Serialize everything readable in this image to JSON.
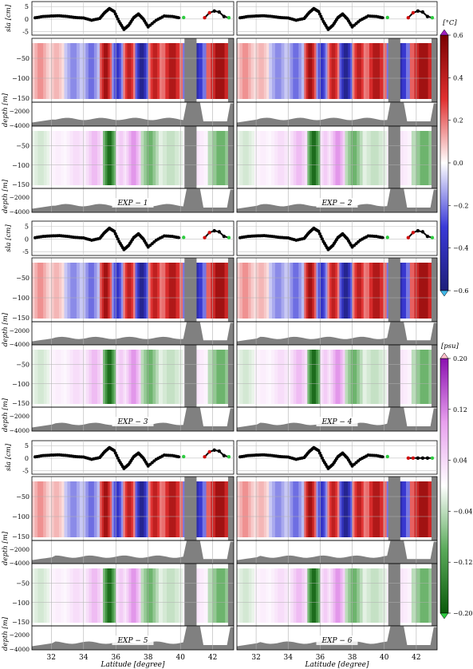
{
  "chart_data": {
    "type": "heatmap",
    "description_panels": "Six experiments, each with a sea-level-anomaly line panel, a temperature anomaly depth section and a salinity anomaly depth section along latitude",
    "x_axis": {
      "label": "Latitude [degree]",
      "ticks": [
        32,
        34,
        36,
        38,
        40,
        42
      ],
      "range": [
        30.8,
        43.3
      ]
    },
    "sla_axis": {
      "label": "sla [cm]",
      "ticks": [
        5,
        0,
        -5
      ],
      "range": [
        -6.5,
        7
      ]
    },
    "depth_axis": {
      "label": "depth [m]",
      "upper_ticks": [
        -50,
        -100,
        -150
      ],
      "lower_ticks": [
        -2000,
        -4000
      ],
      "upper_range": [
        0,
        -160
      ],
      "lower_range": [
        -160,
        -4000
      ]
    },
    "temperature_colorbar": {
      "unit": "[°C]",
      "ticks": [
        0.6,
        0.4,
        0.2,
        0.0,
        -0.2,
        -0.4,
        -0.6
      ],
      "range": [
        -0.6,
        0.6
      ],
      "colors": [
        "#2020a0",
        "#ffffff",
        "#d00000"
      ]
    },
    "salinity_colorbar": {
      "unit": "[psu]",
      "ticks": [
        0.2,
        0.12,
        0.04,
        -0.04,
        -0.12,
        -0.2
      ],
      "range": [
        -0.2,
        0.2
      ],
      "colors": [
        "#1a7a1a",
        "#ffffff",
        "#9a1aca"
      ]
    },
    "experiments": [
      {
        "name": "EXP-1",
        "label": "EXP − 1"
      },
      {
        "name": "EXP-2",
        "label": "EXP − 2"
      },
      {
        "name": "EXP-3",
        "label": "EXP − 3"
      },
      {
        "name": "EXP-4",
        "label": "EXP − 4"
      },
      {
        "name": "EXP-5",
        "label": "EXP − 5"
      },
      {
        "name": "EXP-6",
        "label": "EXP − 6"
      }
    ],
    "sla_series": {
      "lat": [
        31.0,
        31.5,
        32.0,
        32.5,
        33.0,
        33.5,
        34.0,
        34.5,
        35.0,
        35.3,
        35.6,
        35.9,
        36.2,
        36.5,
        36.8,
        37.1,
        37.4,
        37.7,
        38.0,
        38.5,
        39.0,
        39.5,
        40.0
      ],
      "values": [
        0.5,
        1.0,
        1.2,
        1.3,
        1.0,
        0.6,
        0.4,
        -0.5,
        0.2,
        2.5,
        4.2,
        3.0,
        -1.0,
        -4.2,
        -2.5,
        0.5,
        2.0,
        0.0,
        -3.2,
        -0.5,
        1.2,
        1.0,
        0.4
      ],
      "north_lat": [
        41.5,
        41.8,
        42.1,
        42.4,
        42.7,
        43.0
      ],
      "north_values": [
        0.5,
        2.5,
        3.2,
        2.8,
        1.0,
        0.5
      ]
    },
    "temperature_bands": [
      {
        "lat": 31.4,
        "value": 0.18
      },
      {
        "lat": 32.3,
        "value": 0.12
      },
      {
        "lat": 33.3,
        "value": -0.2
      },
      {
        "lat": 34.6,
        "value": -0.25
      },
      {
        "lat": 35.4,
        "value": 0.55
      },
      {
        "lat": 36.1,
        "value": -0.4
      },
      {
        "lat": 36.8,
        "value": 0.45
      },
      {
        "lat": 37.6,
        "value": -0.6
      },
      {
        "lat": 38.4,
        "value": 0.45
      },
      {
        "lat": 39.3,
        "value": 0.5
      },
      {
        "lat": 41.0,
        "value": -0.5
      },
      {
        "lat": 42.2,
        "value": 0.55
      }
    ],
    "salinity_bands": [
      {
        "lat": 31.4,
        "value": -0.03
      },
      {
        "lat": 32.4,
        "value": 0.02
      },
      {
        "lat": 33.5,
        "value": 0.04
      },
      {
        "lat": 34.8,
        "value": 0.08
      },
      {
        "lat": 35.6,
        "value": -0.2
      },
      {
        "lat": 36.4,
        "value": 0.06
      },
      {
        "lat": 36.9,
        "value": 0.12
      },
      {
        "lat": 38.2,
        "value": -0.1
      },
      {
        "lat": 39.1,
        "value": -0.04
      },
      {
        "lat": 41.2,
        "value": 0.03
      },
      {
        "lat": 42.2,
        "value": -0.1
      }
    ]
  }
}
